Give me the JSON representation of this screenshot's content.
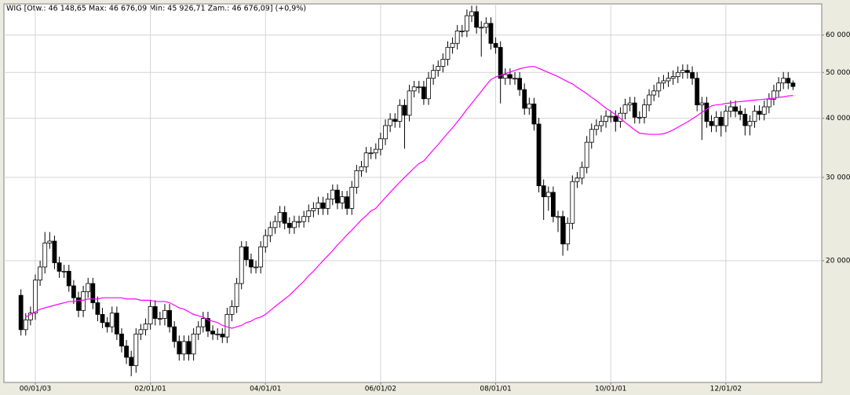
{
  "chart_data": {
    "type": "candlestick",
    "title": "WIG [Otw.: 46 148,65  Max: 46 676,09  Min: 45 926,71  Zam.: 46 676,09] (+0,9%)",
    "categories": [
      null,
      null,
      null,
      "00/01/03",
      null,
      null,
      null,
      null,
      null,
      null,
      null,
      null,
      null,
      null,
      null,
      null,
      null,
      null,
      null,
      null,
      null,
      null,
      null,
      null,
      null,
      null,
      null,
      "02/01/01",
      null,
      null,
      null,
      null,
      null,
      null,
      null,
      null,
      null,
      null,
      null,
      null,
      null,
      null,
      null,
      null,
      null,
      null,
      null,
      null,
      null,
      null,
      null,
      "04/01/01",
      null,
      null,
      null,
      null,
      null,
      null,
      null,
      null,
      null,
      null,
      null,
      null,
      null,
      null,
      null,
      null,
      null,
      null,
      null,
      null,
      null,
      null,
      null,
      "06/01/02",
      null,
      null,
      null,
      null,
      null,
      null,
      null,
      null,
      null,
      null,
      null,
      null,
      null,
      null,
      null,
      null,
      null,
      null,
      null,
      null,
      null,
      null,
      null,
      "08/01/01",
      null,
      null,
      null,
      null,
      null,
      null,
      null,
      null,
      null,
      null,
      null,
      null,
      null,
      null,
      null,
      null,
      null,
      null,
      null,
      null,
      null,
      null,
      null,
      "10/01/01",
      null,
      null,
      null,
      null,
      null,
      null,
      null,
      null,
      null,
      null,
      null,
      null,
      null,
      null,
      null,
      null,
      null,
      null,
      null,
      null,
      null,
      null,
      null,
      "12/01/02",
      null,
      null,
      null,
      null,
      null,
      null,
      null,
      null,
      null,
      null,
      null,
      null,
      null,
      null
    ],
    "open": [
      16900,
      14300,
      15000,
      15500,
      18200,
      19400,
      21800,
      22000,
      19800,
      19000,
      19000,
      17700,
      16700,
      15700,
      17200,
      17900,
      16300,
      15400,
      14800,
      14500,
      15500,
      14000,
      13200,
      12500,
      12000,
      14000,
      14300,
      14700,
      16000,
      15100,
      15100,
      15700,
      14500,
      13500,
      12700,
      13500,
      12700,
      14000,
      14500,
      15100,
      14200,
      14000,
      14000,
      13800,
      15400,
      16000,
      17900,
      21400,
      20100,
      19400,
      19400,
      21400,
      22600,
      23500,
      24200,
      25300,
      24000,
      23500,
      24200,
      24200,
      24800,
      25500,
      25800,
      26500,
      25800,
      27000,
      28200,
      26500,
      27300,
      25800,
      28600,
      31000,
      31600,
      33800,
      33800,
      34400,
      36200,
      38600,
      39800,
      39400,
      42600,
      40600,
      45700,
      46600,
      46600,
      44000,
      48600,
      50500,
      51500,
      53300,
      56500,
      57600,
      61200,
      61200,
      65900,
      67200,
      62300,
      62300,
      63500,
      57600,
      56500,
      48600,
      49500,
      48600,
      48600,
      46000,
      42000,
      42900,
      38900,
      28800,
      27300,
      27900,
      24800,
      24800,
      21700,
      24000,
      29400,
      29900,
      31500,
      35600,
      37900,
      38600,
      39400,
      40400,
      40400,
      39400,
      41000,
      42700,
      43100,
      40200,
      40200,
      42700,
      44800,
      45700,
      47500,
      48000,
      48600,
      49000,
      50000,
      50500,
      50000,
      48600,
      42700,
      43100,
      39400,
      38600,
      40200,
      38600,
      41400,
      42300,
      41400,
      40800,
      38600,
      39400,
      41400,
      40800,
      42300,
      43900,
      45700,
      47500,
      48600,
      47500
    ],
    "high": [
      17400,
      15500,
      16000,
      18700,
      20000,
      23000,
      23000,
      22600,
      20400,
      19600,
      19600,
      18200,
      17200,
      17700,
      18400,
      18400,
      16800,
      15900,
      15200,
      16000,
      16000,
      14400,
      13600,
      12900,
      14400,
      14700,
      15100,
      16500,
      16500,
      15600,
      16200,
      16200,
      14900,
      13900,
      13900,
      13900,
      14400,
      14900,
      15600,
      15600,
      14600,
      14400,
      14400,
      15900,
      16500,
      18400,
      22000,
      22000,
      20700,
      20000,
      22000,
      23300,
      24200,
      24900,
      26100,
      26100,
      24700,
      24900,
      24900,
      25500,
      26300,
      26600,
      27300,
      27300,
      27800,
      29000,
      29000,
      28100,
      28100,
      29500,
      31900,
      32500,
      34800,
      34800,
      35400,
      37300,
      39800,
      41000,
      41000,
      43900,
      43900,
      47100,
      48000,
      48000,
      48000,
      50100,
      52000,
      53000,
      54900,
      58200,
      59300,
      63000,
      63000,
      67900,
      69200,
      69200,
      64200,
      65400,
      65400,
      59300,
      58200,
      51000,
      51000,
      50100,
      50100,
      47400,
      44200,
      44200,
      40100,
      29700,
      28700,
      28700,
      25500,
      25500,
      24700,
      30300,
      30800,
      32400,
      36700,
      39000,
      39800,
      40600,
      41600,
      41600,
      41600,
      42200,
      44000,
      44400,
      44400,
      41400,
      44000,
      46100,
      47100,
      48900,
      49400,
      50100,
      50500,
      51500,
      52000,
      52000,
      51500,
      50100,
      44400,
      44400,
      40600,
      41400,
      41400,
      42600,
      43600,
      43600,
      42600,
      42000,
      40600,
      42600,
      42600,
      43600,
      45200,
      47100,
      48900,
      50100,
      50100,
      48100
    ],
    "low": [
      13900,
      13900,
      14600,
      15000,
      17700,
      18800,
      21200,
      19200,
      18400,
      18400,
      17200,
      16200,
      15200,
      15200,
      16700,
      15800,
      14900,
      14400,
      14100,
      14100,
      13600,
      12800,
      12100,
      11400,
      11600,
      13600,
      13900,
      14300,
      14600,
      14600,
      14600,
      14100,
      13100,
      12300,
      12300,
      12300,
      12300,
      13600,
      14100,
      13800,
      13600,
      13600,
      13400,
      13400,
      14900,
      15500,
      17400,
      19500,
      18800,
      18800,
      18800,
      20800,
      21900,
      22800,
      23500,
      23300,
      22800,
      22800,
      23500,
      23500,
      24100,
      24700,
      25000,
      25000,
      25000,
      26200,
      25700,
      25700,
      25000,
      25000,
      27700,
      30100,
      30700,
      32800,
      32800,
      33400,
      35100,
      37400,
      38200,
      38200,
      34500,
      39400,
      44300,
      45200,
      42700,
      42700,
      47100,
      49000,
      50000,
      51700,
      54800,
      55900,
      59400,
      59400,
      63900,
      60400,
      54000,
      60400,
      55900,
      54800,
      43000,
      47100,
      47100,
      47100,
      44600,
      40700,
      40700,
      37700,
      27900,
      24400,
      25500,
      24100,
      23000,
      20500,
      21000,
      23300,
      28500,
      29000,
      30600,
      34500,
      36800,
      37400,
      38200,
      39200,
      37500,
      38200,
      39800,
      41400,
      39000,
      39000,
      39000,
      41400,
      43500,
      44300,
      46100,
      46600,
      47100,
      47500,
      48500,
      48500,
      47100,
      41400,
      36000,
      38200,
      37400,
      37400,
      36600,
      37400,
      40200,
      40200,
      39600,
      36800,
      36800,
      38200,
      39600,
      39600,
      41000,
      42600,
      44300,
      46100,
      46100,
      45900
    ],
    "close": [
      14300,
      15000,
      15500,
      18200,
      19400,
      21800,
      22000,
      19800,
      19000,
      19000,
      17700,
      16700,
      15700,
      17200,
      17900,
      16300,
      15400,
      14800,
      14500,
      15500,
      14000,
      13200,
      12500,
      12000,
      14000,
      14300,
      14700,
      16000,
      15100,
      15100,
      15700,
      14500,
      13500,
      12700,
      13500,
      12700,
      14000,
      14500,
      15100,
      14200,
      14000,
      14000,
      13800,
      15400,
      16000,
      17900,
      21400,
      20100,
      19400,
      19400,
      21400,
      22600,
      23500,
      24200,
      25300,
      24000,
      23500,
      24200,
      24200,
      24800,
      25500,
      25800,
      26500,
      25800,
      27000,
      28200,
      26500,
      27300,
      25800,
      28600,
      31000,
      31600,
      33800,
      33800,
      34400,
      36200,
      38600,
      39800,
      39400,
      42600,
      40600,
      45700,
      46600,
      46600,
      44000,
      48600,
      50500,
      51500,
      53300,
      56500,
      57600,
      61200,
      61200,
      65900,
      67200,
      62300,
      62300,
      63500,
      57600,
      56500,
      48600,
      49500,
      48600,
      48600,
      46000,
      42000,
      42900,
      38900,
      28800,
      27300,
      27900,
      24800,
      24800,
      21700,
      24000,
      29400,
      29900,
      31500,
      35600,
      37900,
      38600,
      39400,
      40400,
      40400,
      39400,
      41000,
      42700,
      43100,
      40200,
      40200,
      42700,
      44800,
      45700,
      47500,
      48000,
      48600,
      49000,
      50000,
      50500,
      50000,
      48600,
      42700,
      43100,
      39400,
      38600,
      40200,
      38600,
      41400,
      42300,
      41400,
      40800,
      38600,
      39400,
      41400,
      40800,
      42300,
      43900,
      45700,
      47500,
      48600,
      47500,
      46700
    ],
    "up_color": "#ffffff",
    "down_color": "#000000",
    "moving_average": {
      "color": "#ff00ff",
      "values": [
        null,
        15200,
        15400,
        15600,
        15800,
        15900,
        16000,
        16100,
        16200,
        16300,
        16400,
        16400,
        16500,
        16500,
        16600,
        16600,
        16600,
        16700,
        16700,
        16700,
        16700,
        16700,
        16600,
        16600,
        16600,
        16500,
        16500,
        16500,
        16400,
        16400,
        16400,
        16300,
        16100,
        15900,
        15800,
        15600,
        15400,
        15300,
        15200,
        15000,
        14900,
        14800,
        14600,
        14500,
        14400,
        14500,
        14600,
        14800,
        14900,
        15100,
        15200,
        15400,
        15700,
        16000,
        16300,
        16600,
        16900,
        17300,
        17700,
        18100,
        18600,
        19000,
        19500,
        20000,
        20500,
        21000,
        21600,
        22100,
        22700,
        23200,
        23800,
        24400,
        24900,
        25500,
        25800,
        26500,
        27200,
        27900,
        28600,
        29300,
        30000,
        30700,
        31400,
        32100,
        32500,
        33400,
        34300,
        35200,
        36200,
        37200,
        38200,
        39300,
        40500,
        41800,
        43000,
        44300,
        45600,
        47000,
        48300,
        48900,
        49300,
        49700,
        50100,
        50500,
        50900,
        51200,
        51400,
        51500,
        51000,
        50500,
        50000,
        49500,
        49000,
        48400,
        47800,
        47300,
        46500,
        45800,
        45100,
        44300,
        43600,
        42800,
        42000,
        41400,
        40700,
        40000,
        39200,
        38500,
        37800,
        37200,
        37100,
        37000,
        37000,
        37000,
        37100,
        37400,
        37800,
        38300,
        38800,
        39300,
        39900,
        40500,
        41200,
        41800,
        42500,
        42700,
        42800,
        43000,
        43100,
        43300,
        43400,
        43500,
        43600,
        43700,
        43800,
        43900,
        44000,
        44100,
        44300,
        44400,
        44600,
        44700
      ]
    },
    "ylim": [
      11060,
      69800
    ],
    "yticks": [
      {
        "value": 20000,
        "label": "20 000,"
      },
      {
        "value": 30000,
        "label": "30 000,"
      },
      {
        "value": 40000,
        "label": "40 000,"
      },
      {
        "value": 50000,
        "label": "50 000,"
      },
      {
        "value": 60000,
        "label": "60 000,"
      }
    ],
    "log_scale": true,
    "grid": true
  }
}
